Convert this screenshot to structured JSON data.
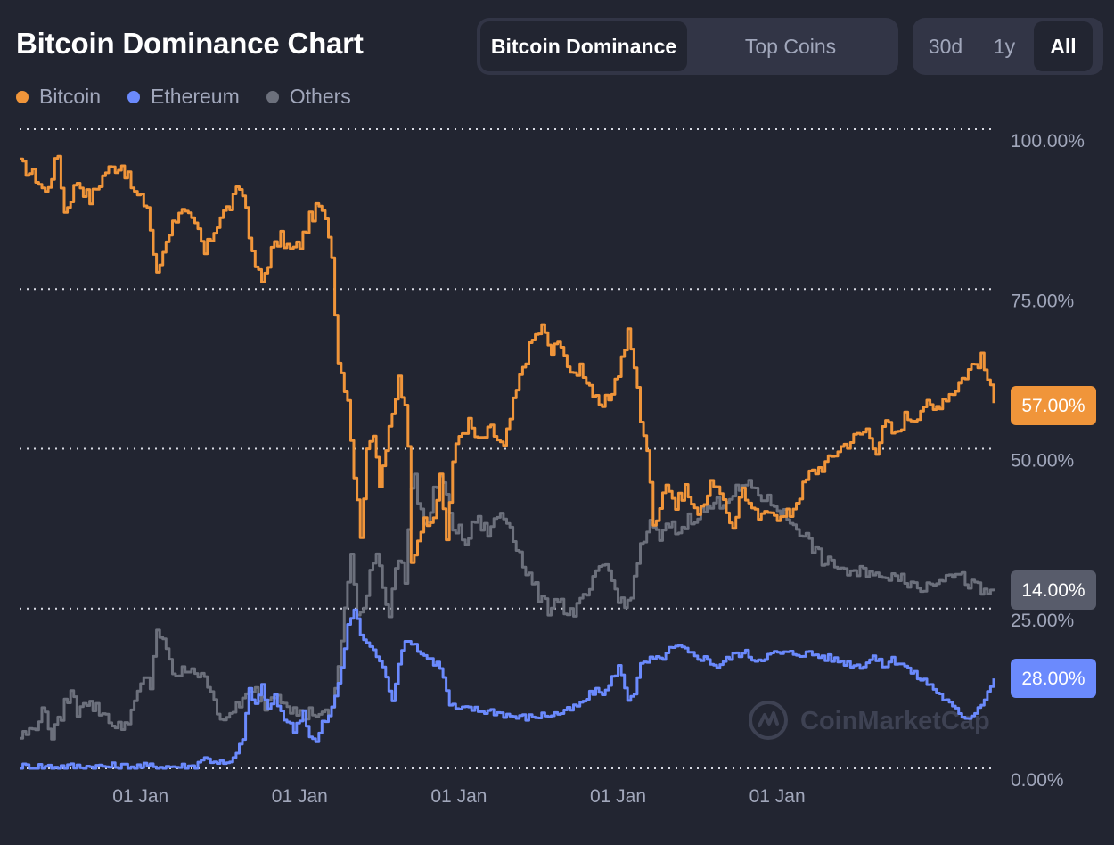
{
  "title": "Bitcoin Dominance Chart",
  "tabs": [
    {
      "label": "Bitcoin Dominance",
      "active": true
    },
    {
      "label": "Top Coins",
      "active": false
    }
  ],
  "ranges": [
    {
      "label": "30d",
      "active": false
    },
    {
      "label": "1y",
      "active": false
    },
    {
      "label": "All",
      "active": true
    }
  ],
  "watermark": "CoinMarketCap",
  "colors": {
    "background": "#222531",
    "bitcoin": "#f0953a",
    "ethereum": "#6b8afd",
    "others": "#6c707c"
  },
  "chart_data": {
    "type": "line",
    "ylim": [
      0,
      100
    ],
    "y_ticks": [
      "0.00%",
      "25.00%",
      "50.00%",
      "75.00%",
      "100.00%"
    ],
    "y_tick_values": [
      0,
      25,
      50,
      75,
      100
    ],
    "x_tick_labels": [
      "01 Jan",
      "01 Jan",
      "01 Jan",
      "01 Jan",
      "01 Jan"
    ],
    "x_tick_positions": [
      38,
      88,
      138,
      188,
      238
    ],
    "x_count": 307,
    "grid": true,
    "legend": "top-left",
    "legend_entries": [
      "Bitcoin",
      "Ethereum",
      "Others"
    ],
    "current_labels": [
      "57.00%",
      "28.00%",
      "14.00%"
    ],
    "series": [
      {
        "name": "Bitcoin",
        "current": 57,
        "points": [
          [
            0,
            94.5
          ],
          [
            5,
            92.5
          ],
          [
            8,
            90
          ],
          [
            12,
            96
          ],
          [
            14,
            87
          ],
          [
            18,
            92
          ],
          [
            22,
            89
          ],
          [
            27,
            93.5
          ],
          [
            32,
            94.5
          ],
          [
            36,
            90
          ],
          [
            40,
            88
          ],
          [
            43,
            77
          ],
          [
            46,
            83
          ],
          [
            50,
            87.5
          ],
          [
            53,
            86
          ],
          [
            56,
            84
          ],
          [
            58,
            80.5
          ],
          [
            60,
            83
          ],
          [
            63,
            86.5
          ],
          [
            66,
            88
          ],
          [
            69,
            91
          ],
          [
            71,
            88
          ],
          [
            73,
            80
          ],
          [
            76,
            76
          ],
          [
            79,
            81
          ],
          [
            82,
            83
          ],
          [
            85,
            81
          ],
          [
            88,
            82
          ],
          [
            91,
            86
          ],
          [
            94,
            88
          ],
          [
            97,
            84
          ],
          [
            98,
            80
          ],
          [
            100,
            64
          ],
          [
            103,
            58
          ],
          [
            105,
            46
          ],
          [
            107,
            37
          ],
          [
            109,
            49
          ],
          [
            111,
            53
          ],
          [
            113,
            45
          ],
          [
            115,
            50
          ],
          [
            117,
            55
          ],
          [
            119,
            61
          ],
          [
            121,
            56
          ],
          [
            122,
            50
          ],
          [
            123,
            32
          ],
          [
            126,
            38
          ],
          [
            130,
            40
          ],
          [
            132,
            45
          ],
          [
            134,
            36
          ],
          [
            136,
            48
          ],
          [
            138,
            52
          ],
          [
            141,
            54
          ],
          [
            144,
            51
          ],
          [
            148,
            53
          ],
          [
            152,
            50
          ],
          [
            155,
            57
          ],
          [
            158,
            63
          ],
          [
            161,
            67
          ],
          [
            164,
            69
          ],
          [
            167,
            65
          ],
          [
            170,
            67
          ],
          [
            173,
            61
          ],
          [
            176,
            63
          ],
          [
            179,
            60
          ],
          [
            182,
            56
          ],
          [
            185,
            58
          ],
          [
            188,
            62
          ],
          [
            191,
            68
          ],
          [
            193,
            63
          ],
          [
            195,
            55
          ],
          [
            197,
            50
          ],
          [
            199,
            38
          ],
          [
            203,
            45
          ],
          [
            206,
            41
          ],
          [
            209,
            44
          ],
          [
            212,
            40
          ],
          [
            215,
            42
          ],
          [
            218,
            45
          ],
          [
            221,
            41
          ],
          [
            224,
            38
          ],
          [
            227,
            44
          ],
          [
            230,
            40
          ],
          [
            233,
            39
          ],
          [
            236,
            41
          ],
          [
            239,
            39
          ],
          [
            242,
            40
          ],
          [
            245,
            43
          ],
          [
            248,
            46
          ],
          [
            251,
            47
          ],
          [
            254,
            48
          ],
          [
            257,
            50
          ],
          [
            260,
            51
          ],
          [
            263,
            52
          ],
          [
            266,
            53
          ],
          [
            269,
            50
          ],
          [
            272,
            54
          ],
          [
            275,
            52
          ],
          [
            278,
            55
          ],
          [
            281,
            55
          ],
          [
            284,
            57
          ],
          [
            287,
            56
          ],
          [
            290,
            58
          ],
          [
            293,
            59
          ],
          [
            296,
            61
          ],
          [
            299,
            63
          ],
          [
            302,
            64
          ],
          [
            304,
            61
          ],
          [
            306,
            57
          ]
        ]
      },
      {
        "name": "Ethereum",
        "current": 14,
        "points": [
          [
            0,
            0.3
          ],
          [
            40,
            0.3
          ],
          [
            55,
            0.3
          ],
          [
            57,
            1.6
          ],
          [
            62,
            1.1
          ],
          [
            65,
            0.5
          ],
          [
            68,
            2
          ],
          [
            70,
            5
          ],
          [
            72,
            12
          ],
          [
            74,
            10
          ],
          [
            76,
            13
          ],
          [
            78,
            9
          ],
          [
            80,
            11
          ],
          [
            83,
            8
          ],
          [
            86,
            6
          ],
          [
            89,
            9
          ],
          [
            91,
            5
          ],
          [
            93,
            4
          ],
          [
            95,
            7
          ],
          [
            97,
            8
          ],
          [
            99,
            11
          ],
          [
            101,
            16
          ],
          [
            103,
            22
          ],
          [
            105,
            25
          ],
          [
            107,
            21
          ],
          [
            110,
            19
          ],
          [
            113,
            17
          ],
          [
            115,
            14
          ],
          [
            117,
            11
          ],
          [
            120,
            19
          ],
          [
            123,
            20
          ],
          [
            126,
            18
          ],
          [
            129,
            17
          ],
          [
            132,
            16
          ],
          [
            135,
            10
          ],
          [
            138,
            9
          ],
          [
            141,
            9.5
          ],
          [
            144,
            9
          ],
          [
            148,
            9
          ],
          [
            152,
            8.5
          ],
          [
            156,
            8
          ],
          [
            160,
            8
          ],
          [
            164,
            8.3
          ],
          [
            168,
            8.5
          ],
          [
            172,
            9
          ],
          [
            176,
            10
          ],
          [
            180,
            12
          ],
          [
            184,
            12
          ],
          [
            188,
            16
          ],
          [
            191,
            11
          ],
          [
            193,
            12
          ],
          [
            195,
            16
          ],
          [
            198,
            17
          ],
          [
            201,
            17
          ],
          [
            204,
            18.5
          ],
          [
            207,
            19
          ],
          [
            210,
            18
          ],
          [
            213,
            17.5
          ],
          [
            216,
            17
          ],
          [
            219,
            16
          ],
          [
            222,
            17
          ],
          [
            225,
            18
          ],
          [
            228,
            18
          ],
          [
            231,
            17
          ],
          [
            234,
            17.5
          ],
          [
            237,
            18
          ],
          [
            240,
            18
          ],
          [
            244,
            18
          ],
          [
            248,
            18
          ],
          [
            252,
            17.5
          ],
          [
            256,
            17
          ],
          [
            260,
            16.5
          ],
          [
            264,
            16
          ],
          [
            268,
            17.5
          ],
          [
            271,
            16
          ],
          [
            274,
            17
          ],
          [
            277,
            16.5
          ],
          [
            280,
            15
          ],
          [
            283,
            14
          ],
          [
            286,
            13
          ],
          [
            289,
            11.5
          ],
          [
            292,
            10
          ],
          [
            295,
            8.5
          ],
          [
            298,
            8
          ],
          [
            301,
            9.5
          ],
          [
            304,
            12
          ],
          [
            306,
            14
          ]
        ]
      },
      {
        "name": "Others",
        "current": 28,
        "points": [
          [
            0,
            5
          ],
          [
            4,
            6
          ],
          [
            6,
            8
          ],
          [
            8,
            9
          ],
          [
            10,
            5
          ],
          [
            12,
            7
          ],
          [
            14,
            10
          ],
          [
            16,
            12
          ],
          [
            18,
            9
          ],
          [
            20,
            11
          ],
          [
            22,
            10
          ],
          [
            25,
            9
          ],
          [
            28,
            8
          ],
          [
            30,
            6
          ],
          [
            33,
            7
          ],
          [
            36,
            10
          ],
          [
            39,
            14
          ],
          [
            41,
            13
          ],
          [
            43,
            22
          ],
          [
            46,
            18
          ],
          [
            49,
            14
          ],
          [
            51,
            15
          ],
          [
            54,
            16
          ],
          [
            57,
            14
          ],
          [
            60,
            13
          ],
          [
            62,
            9
          ],
          [
            65,
            7
          ],
          [
            68,
            10
          ],
          [
            71,
            11
          ],
          [
            74,
            12
          ],
          [
            77,
            10
          ],
          [
            80,
            12
          ],
          [
            83,
            11
          ],
          [
            86,
            9
          ],
          [
            89,
            8
          ],
          [
            92,
            9
          ],
          [
            95,
            8
          ],
          [
            98,
            9
          ],
          [
            100,
            16
          ],
          [
            102,
            25
          ],
          [
            104,
            33
          ],
          [
            105,
            29
          ],
          [
            106,
            23
          ],
          [
            108,
            25
          ],
          [
            110,
            31
          ],
          [
            112,
            34
          ],
          [
            114,
            29
          ],
          [
            116,
            24
          ],
          [
            117,
            28
          ],
          [
            119,
            33
          ],
          [
            121,
            30
          ],
          [
            123,
            44
          ],
          [
            124,
            45
          ],
          [
            126,
            40
          ],
          [
            128,
            38
          ],
          [
            130,
            43
          ],
          [
            132,
            46
          ],
          [
            134,
            42
          ],
          [
            136,
            38
          ],
          [
            138,
            37
          ],
          [
            140,
            35
          ],
          [
            143,
            39
          ],
          [
            147,
            37
          ],
          [
            151,
            40
          ],
          [
            154,
            38
          ],
          [
            156,
            35
          ],
          [
            158,
            32
          ],
          [
            160,
            30
          ],
          [
            162,
            28
          ],
          [
            164,
            26
          ],
          [
            166,
            25
          ],
          [
            169,
            27
          ],
          [
            172,
            24
          ],
          [
            175,
            25
          ],
          [
            178,
            27
          ],
          [
            181,
            30
          ],
          [
            184,
            32
          ],
          [
            187,
            28
          ],
          [
            190,
            25
          ],
          [
            193,
            29
          ],
          [
            195,
            35
          ],
          [
            198,
            38
          ],
          [
            201,
            36
          ],
          [
            204,
            38
          ],
          [
            207,
            37
          ],
          [
            210,
            39
          ],
          [
            214,
            40
          ],
          [
            217,
            41
          ],
          [
            221,
            42
          ],
          [
            224,
            43
          ],
          [
            227,
            44
          ],
          [
            230,
            44
          ],
          [
            234,
            42
          ],
          [
            238,
            41
          ],
          [
            241,
            39
          ],
          [
            244,
            38
          ],
          [
            247,
            36
          ],
          [
            250,
            34
          ],
          [
            253,
            32
          ],
          [
            256,
            32
          ],
          [
            259,
            31
          ],
          [
            262,
            30
          ],
          [
            265,
            31
          ],
          [
            268,
            31
          ],
          [
            271,
            29
          ],
          [
            274,
            31
          ],
          [
            277,
            30
          ],
          [
            280,
            29
          ],
          [
            283,
            28
          ],
          [
            286,
            29
          ],
          [
            289,
            30
          ],
          [
            292,
            31
          ],
          [
            295,
            30
          ],
          [
            298,
            29
          ],
          [
            301,
            28
          ],
          [
            304,
            27
          ],
          [
            306,
            28
          ]
        ]
      }
    ]
  }
}
